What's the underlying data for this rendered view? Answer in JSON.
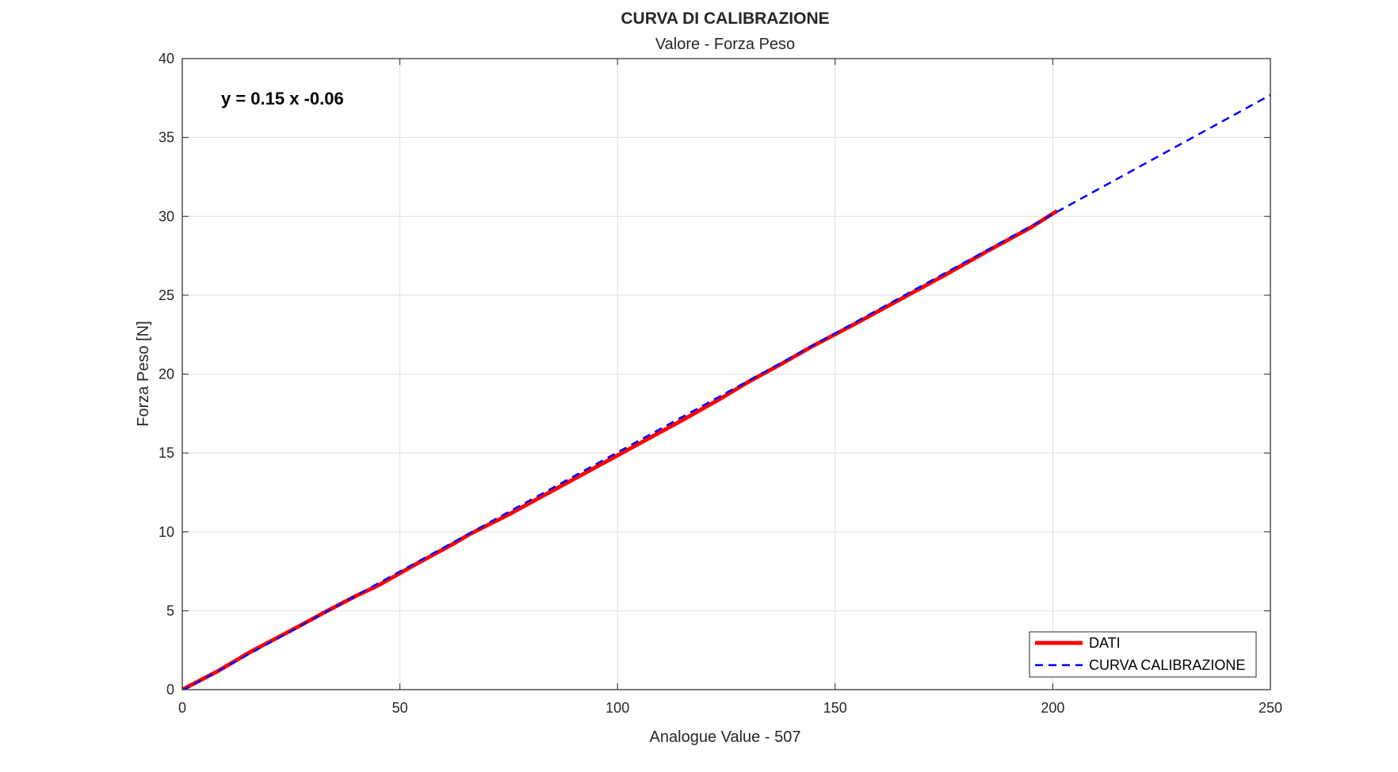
{
  "chart_data": {
    "type": "line",
    "title": "CURVA DI CALIBRAZIONE",
    "subtitle": "Valore - Forza Peso",
    "xlabel": "Analogue Value - 507",
    "ylabel": "Forza Peso [N]",
    "xlim": [
      0,
      250
    ],
    "ylim": [
      0,
      40
    ],
    "xticks": [
      0,
      50,
      100,
      150,
      200,
      250
    ],
    "yticks": [
      0,
      5,
      10,
      15,
      20,
      25,
      30,
      35,
      40
    ],
    "xtick_labels": [
      "0",
      "50",
      "100",
      "150",
      "200",
      "250"
    ],
    "ytick_labels": [
      "0",
      "5",
      "10",
      "15",
      "20",
      "25",
      "30",
      "35",
      "40"
    ],
    "grid": true,
    "legend_position": "bottom-right",
    "annotation": "y = 0.15 x -0.06",
    "series": [
      {
        "name": "DATI",
        "color": "#ff0000",
        "style": "solid",
        "x": [
          0,
          8,
          16,
          26,
          33,
          40,
          45,
          53,
          62,
          66,
          75,
          85,
          95,
          105,
          115,
          124,
          130,
          138,
          145,
          154,
          165,
          175,
          185,
          195,
          201
        ],
        "y": [
          0,
          1.15,
          2.45,
          3.9,
          4.95,
          5.95,
          6.6,
          7.85,
          9.2,
          9.85,
          11.1,
          12.6,
          14.1,
          15.6,
          17.1,
          18.5,
          19.5,
          20.7,
          21.8,
          23.1,
          24.75,
          26.25,
          27.8,
          29.3,
          30.35
        ]
      },
      {
        "name": "CURVA CALIBRAZIONE",
        "color": "#0000ff",
        "style": "dashed",
        "x": [
          0,
          250
        ],
        "y": [
          -0.06,
          37.69
        ]
      }
    ]
  }
}
